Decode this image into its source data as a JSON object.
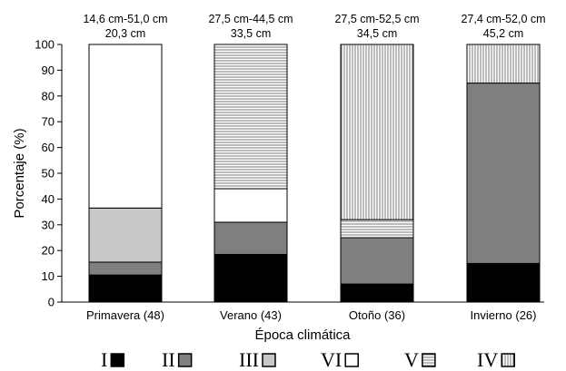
{
  "chart_data": {
    "type": "bar",
    "stacked": true,
    "xlabel": "Época climática",
    "ylabel": "Porcentaje (%)",
    "ylim": [
      0,
      100
    ],
    "yticks": [
      0,
      10,
      20,
      30,
      40,
      50,
      60,
      70,
      80,
      90,
      100
    ],
    "categories": [
      "Primavera (48)",
      "Verano (43)",
      "Otoño (36)",
      "Invierno (26)"
    ],
    "annotations": [
      {
        "range": "14,6 cm-51,0 cm",
        "value": "20,3 cm"
      },
      {
        "range": "27,5 cm-44,5 cm",
        "value": "33,5 cm"
      },
      {
        "range": "27,5 cm-52,5 cm",
        "value": "34,5 cm"
      },
      {
        "range": "27,4 cm-52,0 cm",
        "value": "45,2 cm"
      }
    ],
    "series": [
      {
        "name": "I",
        "pattern": "solid-black",
        "values": [
          10.5,
          18.5,
          7,
          15
        ]
      },
      {
        "name": "II",
        "pattern": "dark-gray",
        "values": [
          5,
          12.5,
          18,
          70
        ]
      },
      {
        "name": "III",
        "pattern": "light-gray",
        "values": [
          21,
          0,
          0,
          0
        ]
      },
      {
        "name": "VI",
        "pattern": "white",
        "values": [
          63.5,
          13,
          0,
          0
        ]
      },
      {
        "name": "V",
        "pattern": "horizontal-lines",
        "values": [
          0,
          56,
          7,
          0
        ]
      },
      {
        "name": "IV",
        "pattern": "vertical-lines",
        "values": [
          0,
          0,
          68,
          15
        ]
      }
    ],
    "legend": {
      "placement": "bottom",
      "order": [
        "I",
        "II",
        "III",
        "VI",
        "V",
        "IV"
      ]
    }
  }
}
